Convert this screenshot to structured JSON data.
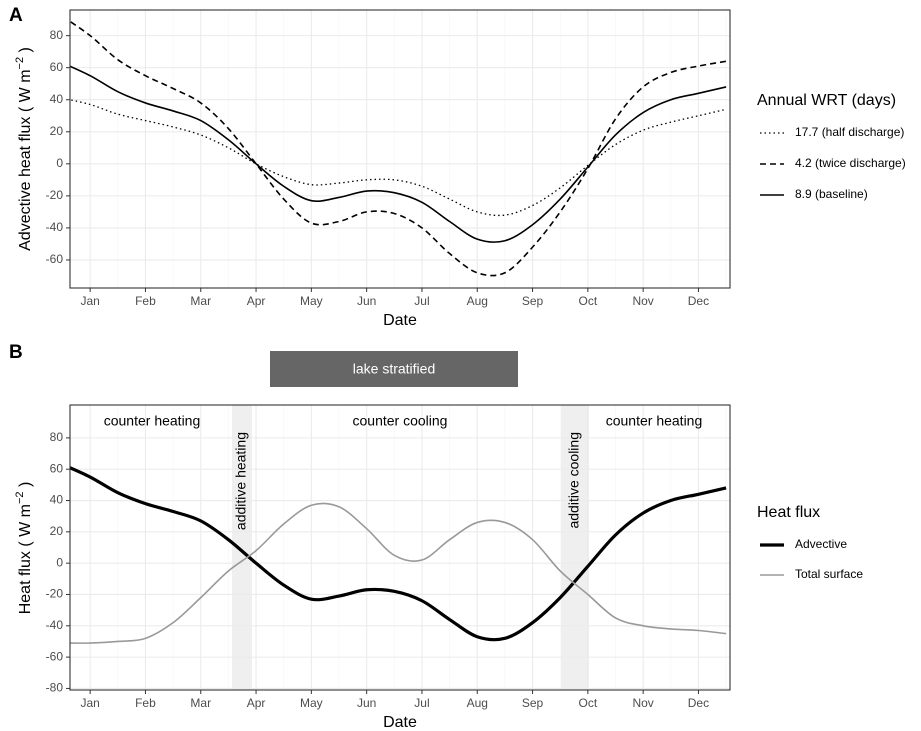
{
  "chart_data": [
    {
      "type": "line",
      "panel": "A",
      "categories": [
        null,
        "Jan",
        null,
        "Feb",
        null,
        "Mar",
        null,
        "Apr",
        null,
        "May",
        null,
        "Jun",
        null,
        "Jul",
        null,
        "Aug",
        null,
        "Sep",
        null,
        "Oct",
        null,
        "Nov",
        null,
        "Dec",
        null
      ],
      "series": [
        {
          "name": "17.7 (half discharge)",
          "color": "#000000",
          "style": "dotted",
          "values": [
            41,
            37,
            31,
            27,
            23,
            18,
            10,
            0,
            -8,
            -13,
            -12,
            -10,
            -10,
            -14,
            -22,
            -30,
            -32,
            -26,
            -15,
            -1,
            12,
            21,
            26,
            30,
            34
          ]
        },
        {
          "name": "4.2 (twice discharge)",
          "color": "#000000",
          "style": "dashed",
          "values": [
            92,
            80,
            65,
            55,
            47,
            38,
            22,
            0,
            -22,
            -37,
            -36,
            -30,
            -31,
            -40,
            -56,
            -68,
            -68,
            -52,
            -30,
            -3,
            28,
            48,
            57,
            61,
            64
          ]
        },
        {
          "name": "8.9 (baseline)",
          "color": "#000000",
          "style": "solid",
          "values": [
            63,
            55,
            45,
            38,
            33,
            27,
            15,
            0,
            -14,
            -23,
            -21,
            -17,
            -18,
            -24,
            -36,
            -47,
            -48,
            -38,
            -22,
            -2,
            18,
            32,
            40,
            44,
            48
          ]
        }
      ],
      "ylim": [
        -77.5,
        96
      ],
      "yticks": [
        -60,
        -40,
        -20,
        0,
        20,
        40,
        60,
        80
      ],
      "grid": true,
      "x_label": "Date",
      "y_label": [
        "Advective heat flux ( W m",
        "−2",
        " )"
      ],
      "legend_title": "Annual WRT (days)",
      "legend": "right"
    },
    {
      "type": "line",
      "panel": "B",
      "categories": [
        null,
        "Jan",
        null,
        "Feb",
        null,
        "Mar",
        null,
        "Apr",
        null,
        "May",
        null,
        "Jun",
        null,
        "Jul",
        null,
        "Aug",
        null,
        "Sep",
        null,
        "Oct",
        null,
        "Nov",
        null,
        "Dec",
        null
      ],
      "series": [
        {
          "name": "Advective",
          "color": "#000000",
          "style": "thick",
          "values": [
            63,
            55,
            45,
            38,
            33,
            27,
            15,
            0,
            -14,
            -23,
            -21,
            -17,
            -18,
            -24,
            -36,
            -47,
            -48,
            -38,
            -22,
            -2,
            18,
            32,
            40,
            44,
            48
          ]
        },
        {
          "name": "Total surface",
          "color": "#999999",
          "style": "solid",
          "values": [
            -51,
            -51,
            -50,
            -48,
            -38,
            -22,
            -5,
            8,
            25,
            37,
            36,
            22,
            5,
            2,
            15,
            26,
            26,
            15,
            -5,
            -20,
            -35,
            -40,
            -42,
            -43,
            -45
          ]
        }
      ],
      "ylim": [
        -81,
        101
      ],
      "yticks": [
        -80,
        -60,
        -40,
        -20,
        0,
        20,
        40,
        60,
        80
      ],
      "grid": true,
      "x_label": "Date",
      "y_label": [
        "Heat flux ( W m",
        "−2",
        " )"
      ],
      "legend_title": "Heat flux",
      "legend": "right",
      "band_label": "lake stratified",
      "annotations": [
        "counter heating",
        "additive heating",
        "counter cooling",
        "additive cooling",
        "counter heating"
      ]
    }
  ]
}
